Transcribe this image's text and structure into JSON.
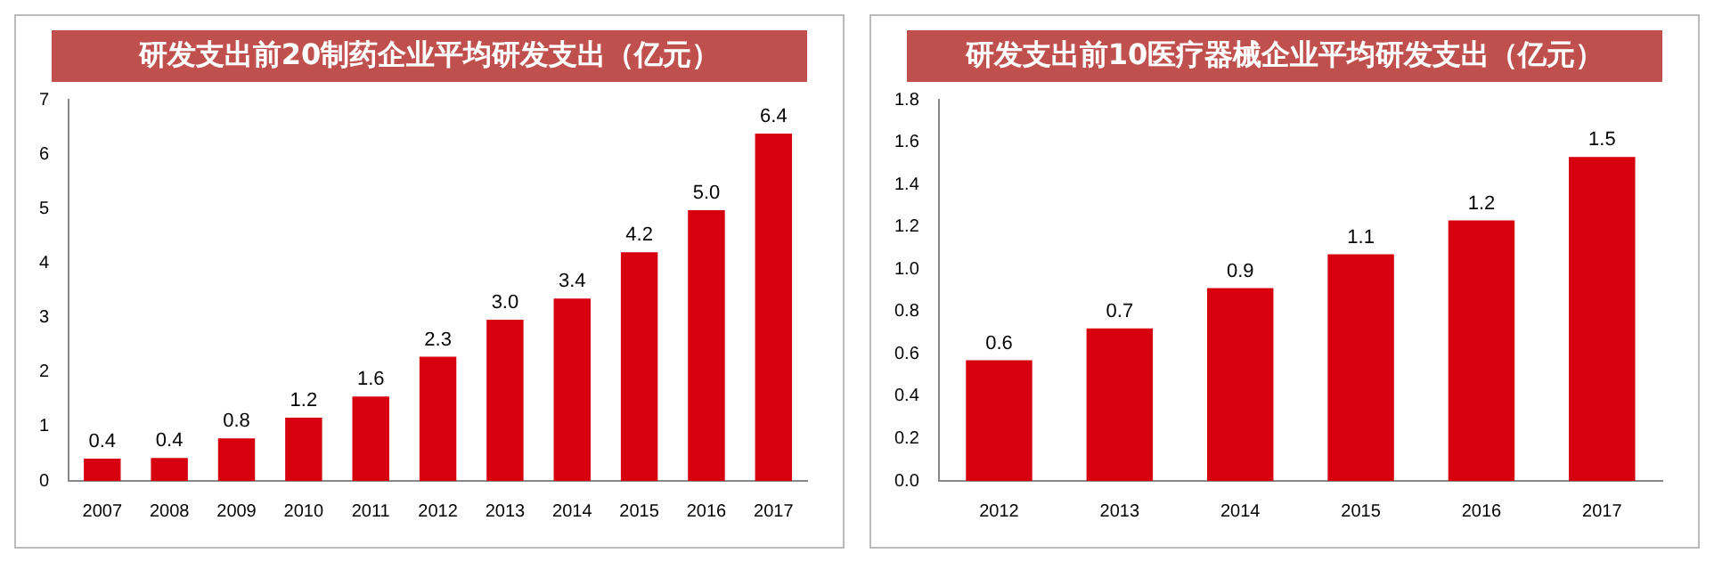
{
  "chart_data": [
    {
      "type": "bar",
      "title": "研发支出前20制药企业平均研发支出（亿元）",
      "categories": [
        "2007",
        "2008",
        "2009",
        "2010",
        "2011",
        "2012",
        "2013",
        "2014",
        "2015",
        "2016",
        "2017"
      ],
      "series": [
        {
          "color": "#d7000f",
          "values": [
            0.41,
            0.42,
            0.78,
            1.16,
            1.55,
            2.28,
            2.96,
            3.35,
            4.2,
            4.97,
            6.38
          ],
          "value_labels": [
            "0.4",
            "0.4",
            "0.8",
            "1.2",
            "1.6",
            "2.3",
            "3.0",
            "3.4",
            "4.2",
            "5.0",
            "6.4"
          ]
        }
      ],
      "ylim": [
        0,
        7
      ],
      "yticks": [
        0,
        1,
        2,
        3,
        4,
        5,
        6,
        7
      ],
      "grid": false,
      "legend": false
    },
    {
      "type": "bar",
      "title": "研发支出前10医疗器械企业平均研发支出（亿元）",
      "categories": [
        "2012",
        "2013",
        "2014",
        "2015",
        "2016",
        "2017"
      ],
      "series": [
        {
          "color": "#d7000f",
          "values": [
            0.57,
            0.72,
            0.91,
            1.07,
            1.23,
            1.53
          ],
          "value_labels": [
            "0.6",
            "0.7",
            "0.9",
            "1.1",
            "1.2",
            "1.5"
          ]
        }
      ],
      "ylim": [
        0,
        1.8
      ],
      "yticks": [
        {
          "value": 0,
          "label": "0.0"
        },
        {
          "value": 0.2,
          "label": "0.2"
        },
        {
          "value": 0.4,
          "label": "0.4"
        },
        {
          "value": 0.6,
          "label": "0.6"
        },
        {
          "value": 0.8,
          "label": "0.8"
        },
        {
          "value": 1,
          "label": "1.0"
        },
        {
          "value": 1.2,
          "label": "1.2"
        },
        {
          "value": 1.4,
          "label": "1.4"
        },
        {
          "value": 1.6,
          "label": "1.6"
        },
        {
          "value": 1.8,
          "label": "1.8"
        }
      ],
      "grid": false,
      "legend": false
    }
  ]
}
